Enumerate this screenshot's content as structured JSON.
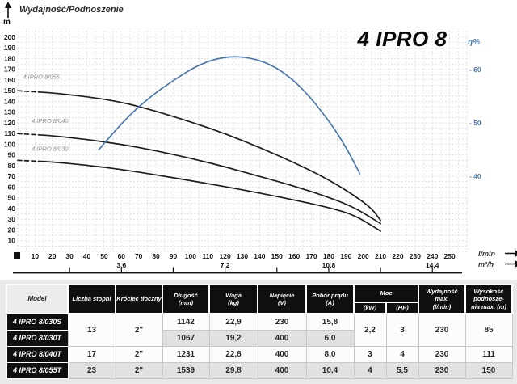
{
  "chart": {
    "y_axis_title": "Wydajność/Podnoszenie",
    "y_axis_unit": "m",
    "title": "4 IPRO 8",
    "eta_axis_label": "η%",
    "x_unit_primary": "l/min",
    "x_unit_secondary": "m³/h"
  },
  "chart_data": {
    "type": "line",
    "title": "4 IPRO 8",
    "x_axis": {
      "unit": "l/min",
      "ticks": [
        10,
        20,
        30,
        40,
        50,
        60,
        70,
        80,
        90,
        100,
        110,
        120,
        130,
        140,
        150,
        160,
        170,
        180,
        190,
        200,
        210,
        220,
        230,
        240,
        250
      ],
      "secondary_unit": "m³/h",
      "secondary_ticks": [
        {
          "label": "3,6",
          "v": 60
        },
        {
          "label": "7,2",
          "v": 120
        },
        {
          "label": "10,8",
          "v": 180
        },
        {
          "label": "14,4",
          "v": 240
        }
      ],
      "secondary_marks": [
        30,
        60,
        90,
        120,
        150,
        180,
        210,
        240
      ]
    },
    "y_axis": {
      "label": "Wydajność/Podnoszenie",
      "unit": "m",
      "ticks": [
        200,
        190,
        180,
        170,
        160,
        150,
        140,
        130,
        120,
        110,
        100,
        90,
        80,
        70,
        60,
        50,
        40,
        30,
        20,
        10
      ]
    },
    "eta_axis": {
      "label": "η%",
      "ticks": [
        60,
        50,
        40
      ],
      "tick_prefix": "- "
    },
    "x_range": [
      0,
      260
    ],
    "y_range": [
      0,
      206
    ],
    "eta_range": [
      25.9,
      67.3
    ],
    "series": [
      {
        "id": "ipro8-055",
        "label": "4 IPRO 8/055",
        "color": "#1d1d1b",
        "axis": "head",
        "dash_until": 13,
        "label_at": [
          3,
          161
        ],
        "points": [
          [
            0,
            150
          ],
          [
            20,
            148
          ],
          [
            40,
            144.5
          ],
          [
            60,
            139.5
          ],
          [
            80,
            131
          ],
          [
            100,
            121
          ],
          [
            120,
            110
          ],
          [
            140,
            97
          ],
          [
            160,
            83
          ],
          [
            180,
            67
          ],
          [
            195,
            52
          ],
          [
            205,
            40
          ],
          [
            210,
            29
          ]
        ]
      },
      {
        "id": "ipro8-040",
        "label": "4 IPRO 8/040",
        "color": "#1d1d1b",
        "axis": "head",
        "dash_until": 13,
        "label_at": [
          8,
          120
        ],
        "points": [
          [
            0,
            110
          ],
          [
            20,
            108
          ],
          [
            40,
            104.5
          ],
          [
            60,
            100
          ],
          [
            80,
            94
          ],
          [
            100,
            87
          ],
          [
            120,
            79
          ],
          [
            140,
            70
          ],
          [
            160,
            61
          ],
          [
            180,
            50.5
          ],
          [
            195,
            41
          ],
          [
            210,
            26
          ]
        ]
      },
      {
        "id": "ipro8-030",
        "label": "4 IPRO 8/030",
        "color": "#1d1d1b",
        "axis": "head",
        "dash_until": 13,
        "label_at": [
          8,
          94
        ],
        "points": [
          [
            0,
            85
          ],
          [
            20,
            83.5
          ],
          [
            40,
            80.5
          ],
          [
            60,
            76.5
          ],
          [
            80,
            71.5
          ],
          [
            100,
            66
          ],
          [
            120,
            60.5
          ],
          [
            140,
            54.5
          ],
          [
            160,
            48
          ],
          [
            180,
            41
          ],
          [
            195,
            34
          ],
          [
            210,
            19
          ]
        ]
      },
      {
        "id": "efficiency",
        "label": "η",
        "color": "#4878b3",
        "axis": "eta",
        "points": [
          [
            47,
            45
          ],
          [
            60,
            50
          ],
          [
            75,
            54.5
          ],
          [
            90,
            58
          ],
          [
            105,
            61
          ],
          [
            120,
            62.5
          ],
          [
            135,
            62.3
          ],
          [
            150,
            60.5
          ],
          [
            165,
            56.5
          ],
          [
            180,
            50.5
          ],
          [
            190,
            45.5
          ],
          [
            198,
            40.5
          ]
        ]
      }
    ]
  },
  "table": {
    "headers": {
      "model": "Model",
      "stages": "Liczba stopni",
      "outlet": "Króciec tłoczny",
      "length": "Długość",
      "length_unit": "(mm)",
      "weight": "Waga",
      "weight_unit": "(kg)",
      "voltage": "Napięcie",
      "voltage_unit": "(V)",
      "current": "Pobór prądu",
      "current_unit": "(A)",
      "power": "Moc",
      "power_kw": "(kW)",
      "power_hp": "(HP)",
      "flow_max": "Wydajność max.",
      "flow_max_unit": "(l/min)",
      "head_max_line1": "Wysokość podnosze-",
      "head_max_line2": "nia max. (m)"
    },
    "rows": [
      {
        "model": "4 IPRO 8/030S",
        "stages": "13",
        "outlet": "2\"",
        "length": "1142",
        "weight": "22,9",
        "voltage": "230",
        "current": "15,8",
        "kw": "2,2",
        "hp": "3",
        "flow": "230",
        "head": "85",
        "shade": false
      },
      {
        "model": "4 IPRO 8/030T",
        "length": "1067",
        "weight": "19,2",
        "voltage": "400",
        "current": "6,0",
        "shade": true
      },
      {
        "model": "4 IPRO 8/040T",
        "stages": "17",
        "outlet": "2\"",
        "length": "1231",
        "weight": "22,8",
        "voltage": "400",
        "current": "8,0",
        "kw": "3",
        "hp": "4",
        "flow": "230",
        "head": "111",
        "shade": false
      },
      {
        "model": "4 IPRO 8/055T",
        "stages": "23",
        "outlet": "2\"",
        "length": "1539",
        "weight": "29,8",
        "voltage": "400",
        "current": "10,4",
        "kw": "4",
        "hp": "5,5",
        "flow": "230",
        "head": "150",
        "shade": true
      }
    ]
  }
}
